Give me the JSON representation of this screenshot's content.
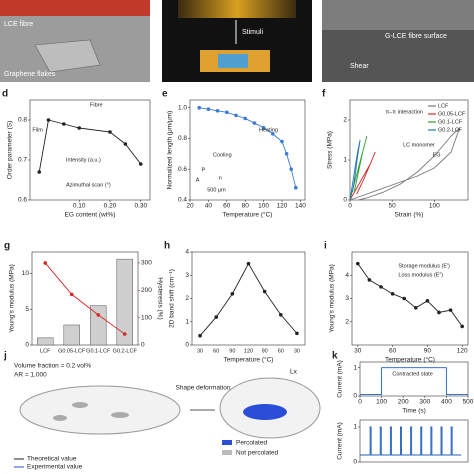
{
  "images": {
    "a": [
      "LCE fibre",
      "Graphene flakes"
    ],
    "b": [
      "Stimuli"
    ],
    "c": [
      "G-LCE fibre surface",
      "Shear"
    ]
  },
  "diagram": {
    "label": "j",
    "volume_fraction": "Volume fraction = 0.2 vol%",
    "aspect_ratio": "AR = 1,000",
    "arrow": "Shape deformation",
    "axis": "Lx",
    "legend": [
      "Percolated",
      "Not percolated"
    ],
    "plot_legend": [
      "Theoretical value",
      "Experimental value"
    ]
  },
  "chart_data": [
    {
      "type": "line",
      "label": "d",
      "markers": true,
      "x_label": "EG content (wt%)",
      "y_label": "Order parameter (S)",
      "xlim": [
        -0.06,
        0.33
      ],
      "xticks": [
        {
          "value": 0.1,
          "label": "0.10"
        },
        {
          "value": 0.2,
          "label": "0.20"
        },
        {
          "value": 0.3,
          "label": "0.30"
        }
      ],
      "ylim": [
        0.6,
        0.85
      ],
      "yticks": [
        0.6,
        0.7,
        0.8
      ],
      "x": [
        -0.03,
        0,
        0.05,
        0.1,
        0.2,
        0.25,
        0.3
      ],
      "series": [
        {
          "color": "#222",
          "values": [
            0.67,
            0.8,
            0.79,
            0.78,
            0.77,
            0.74,
            0.69
          ]
        }
      ],
      "annotations": [
        "Film",
        "Fibre",
        "Intensity (a.u.)",
        "Azimuthal scan (°)"
      ]
    },
    {
      "type": "line",
      "label": "e",
      "markers": true,
      "x_label": "Temperature (°C)",
      "y_label": "Normalized length (μm/μm)",
      "xlim": [
        20,
        145
      ],
      "xticks": [
        20,
        40,
        60,
        80,
        100,
        120,
        140
      ],
      "ylim": [
        0.4,
        1.05
      ],
      "yticks": [
        0.4,
        0.6,
        0.8,
        {
          "value": 1,
          "label": "1.0"
        }
      ],
      "x": [
        30,
        40,
        50,
        60,
        70,
        80,
        90,
        100,
        110,
        120,
        125,
        130,
        135
      ],
      "series": [
        {
          "color": "#3a7bd5",
          "values": [
            1,
            0.99,
            0.98,
            0.97,
            0.95,
            0.93,
            0.9,
            0.87,
            0.83,
            0.78,
            0.7,
            0.6,
            0.48
          ]
        }
      ],
      "annotations": [
        "Heating",
        "Cooling",
        "500 μm",
        "P",
        "A",
        "n"
      ]
    },
    {
      "type": "line",
      "label": "f",
      "x_label": "Strain (%)",
      "y_label": "Stress (MPa)",
      "xlim": [
        0,
        140
      ],
      "xticks": [
        0,
        50,
        100
      ],
      "ylim": [
        0,
        2.5
      ],
      "yticks": [
        0,
        1,
        2
      ],
      "legend": true,
      "series": [
        {
          "name": "LCF",
          "color": "#777",
          "x": [
            0,
            20,
            40,
            60,
            80,
            100,
            120,
            130,
            120,
            100,
            80,
            60,
            40,
            20,
            10
          ],
          "values": [
            0,
            0.15,
            0.3,
            0.45,
            0.6,
            0.8,
            1.2,
            1.8,
            1.6,
            1.1,
            0.7,
            0.4,
            0.2,
            0.05,
            0
          ]
        },
        {
          "name": "G0.05-LCF",
          "color": "#d62728",
          "x": [
            0,
            8,
            16,
            24,
            30,
            24,
            16,
            8
          ],
          "values": [
            0,
            0.3,
            0.6,
            0.9,
            1.2,
            0.9,
            0.5,
            0.15
          ]
        },
        {
          "name": "G0.1-LCF",
          "color": "#2ca02c",
          "x": [
            0,
            5,
            10,
            15,
            20,
            15,
            10,
            5
          ],
          "values": [
            0,
            0.4,
            0.8,
            1.2,
            1.6,
            1.2,
            0.7,
            0.2
          ]
        },
        {
          "name": "G0.2-LCF",
          "color": "#1f77b4",
          "x": [
            0,
            3,
            6,
            9,
            12,
            9,
            6,
            3
          ],
          "values": [
            0,
            0.4,
            0.8,
            1.2,
            1.5,
            1.1,
            0.6,
            0.2
          ]
        }
      ],
      "annotations": [
        "π–π interaction",
        "LC monomer",
        "EG"
      ]
    },
    {
      "type": "bar",
      "label": "g",
      "y_label": "Young's modulus (MPa)",
      "y2_label": "Hysteresis (%)",
      "categories": [
        "LCF",
        "G0.05-LCF",
        "G0.1-LCF",
        "G0.2-LCF"
      ],
      "ylim": [
        0,
        13
      ],
      "yticks": [
        0,
        5,
        10
      ],
      "y2lim": [
        0,
        340
      ],
      "y2ticks": [
        0,
        100,
        200,
        300
      ],
      "series": [
        {
          "color": "#cfcfcf",
          "values": [
            1,
            2.8,
            5.5,
            12
          ]
        },
        {
          "color": "#d62728",
          "axis": "y2",
          "values": [
            300,
            185,
            110,
            40
          ]
        }
      ]
    },
    {
      "type": "line",
      "label": "h",
      "markers": true,
      "x_label": "Temperature (°C)",
      "y_label": "2D band shift (cm⁻¹)",
      "categories": [
        "30",
        "60",
        "90",
        "120",
        "90",
        "60",
        "30"
      ],
      "ylim": [
        0,
        4
      ],
      "yticks": [
        0,
        1,
        2,
        3,
        4
      ],
      "series": [
        {
          "color": "#222",
          "values": [
            0.4,
            1.2,
            2.2,
            3.5,
            2.3,
            1.3,
            0.5
          ]
        }
      ]
    },
    {
      "type": "line",
      "label": "i",
      "markers": true,
      "x_label": "Temperature (°C)",
      "y_label": "Young's modulus (MPa)",
      "xlim": [
        25,
        125
      ],
      "xticks": [
        30,
        60,
        90,
        120
      ],
      "ylim": [
        1,
        5
      ],
      "yticks": [
        2,
        3,
        4
      ],
      "x": [
        30,
        40,
        50,
        60,
        70,
        80,
        90,
        100,
        110,
        120
      ],
      "series": [
        {
          "color": "#222",
          "values": [
            4.5,
            3.8,
            3.5,
            3.2,
            3,
            2.6,
            2.9,
            2.4,
            2.5,
            1.8
          ]
        }
      ],
      "annotations": [
        "Storage modulus (E′)",
        "Loss modulus (E″)"
      ]
    },
    {
      "type": "line",
      "label": "k",
      "x_label": "Time (s)",
      "y_label": "Current (mA)",
      "xlim": [
        0,
        500
      ],
      "xticks": [
        0,
        100,
        200,
        300,
        400,
        500
      ],
      "ylim": [
        0,
        1.2
      ],
      "yticks": [
        0,
        1
      ],
      "x": [
        0,
        100,
        100,
        400,
        400,
        500
      ],
      "series": [
        {
          "color": "#1f5fbf",
          "values": [
            0.05,
            0.05,
            1,
            1,
            0.05,
            0.05
          ]
        }
      ],
      "annotations": [
        "Contracted state"
      ]
    },
    {
      "type": "line",
      "y_label": "Current (mA)",
      "xlim": [
        0,
        320
      ],
      "ylim": [
        0,
        1.2
      ],
      "yticks": [
        0,
        1
      ],
      "x": [
        0,
        30,
        30,
        33,
        33,
        60,
        60,
        63,
        63,
        90,
        90,
        93,
        93,
        120,
        120,
        123,
        123,
        150,
        150,
        153,
        153,
        180,
        180,
        183,
        183,
        210,
        210,
        213,
        213,
        240,
        240,
        243,
        243,
        270,
        270,
        273,
        273,
        300
      ],
      "series": [
        {
          "color": "#1f5fbf",
          "values": [
            0.2,
            0.2,
            1,
            1,
            0.2,
            0.2,
            1,
            1,
            0.2,
            0.2,
            1,
            1,
            0.2,
            0.2,
            1,
            1,
            0.2,
            0.2,
            1,
            1,
            0.2,
            0.2,
            1,
            1,
            0.2,
            0.2,
            1,
            1,
            0.2,
            0.2,
            1,
            1,
            0.2,
            0.2,
            1,
            1,
            0.2,
            0.2
          ]
        }
      ]
    }
  ]
}
